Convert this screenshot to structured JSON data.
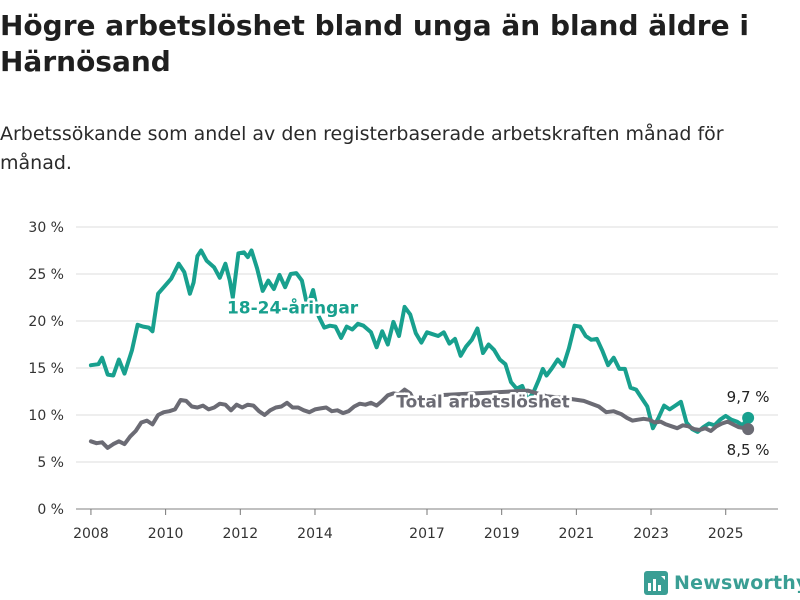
{
  "title": "Högre arbetslöshet bland unga än bland äldre i Härnösand",
  "subtitle": "Arbetssökande som andel av den registerbaserade arbetskraften månad för månad.",
  "brand": {
    "name": "Newsworthy",
    "icon": "bar-chart-logo-icon",
    "color": "#3a9e94"
  },
  "chart_data": {
    "type": "line",
    "title": "Högre arbetslöshet bland unga än bland äldre i Härnösand",
    "subtitle": "Arbetssökande som andel av den registerbaserade arbetskraften månad för månad.",
    "xlabel": "",
    "ylabel": "",
    "ylim": [
      0,
      30
    ],
    "xlim": [
      2007.6,
      2026.4
    ],
    "grid": "horizontal",
    "legend": "inline labels",
    "y_ticks": [
      0,
      5,
      10,
      15,
      20,
      25,
      30
    ],
    "y_tick_labels": [
      "0 %",
      "5 %",
      "10 %",
      "15 %",
      "20 %",
      "25 %",
      "30 %"
    ],
    "x_ticks": [
      2008,
      2010,
      2012,
      2014,
      2017,
      2019,
      2021,
      2023,
      2025
    ],
    "x_tick_labels": [
      "2008",
      "2010",
      "2012",
      "2014",
      "2017",
      "2019",
      "2021",
      "2023",
      "2025"
    ],
    "series": [
      {
        "name": "18-24-åringar",
        "color": "#18a08e",
        "end_label": "9,7 %",
        "points": [
          [
            2008.0,
            15.3
          ],
          [
            2008.2,
            15.4
          ],
          [
            2008.3,
            16.1
          ],
          [
            2008.45,
            14.3
          ],
          [
            2008.6,
            14.2
          ],
          [
            2008.75,
            15.9
          ],
          [
            2008.9,
            14.4
          ],
          [
            2009.1,
            16.9
          ],
          [
            2009.25,
            19.6
          ],
          [
            2009.4,
            19.4
          ],
          [
            2009.55,
            19.3
          ],
          [
            2009.65,
            18.9
          ],
          [
            2009.8,
            22.9
          ],
          [
            2009.95,
            23.6
          ],
          [
            2010.15,
            24.5
          ],
          [
            2010.35,
            26.1
          ],
          [
            2010.5,
            25.2
          ],
          [
            2010.65,
            22.9
          ],
          [
            2010.75,
            24.1
          ],
          [
            2010.85,
            26.9
          ],
          [
            2010.95,
            27.5
          ],
          [
            2011.1,
            26.4
          ],
          [
            2011.3,
            25.7
          ],
          [
            2011.45,
            24.6
          ],
          [
            2011.6,
            26.1
          ],
          [
            2011.72,
            24.3
          ],
          [
            2011.8,
            22.5
          ],
          [
            2011.95,
            27.2
          ],
          [
            2012.1,
            27.3
          ],
          [
            2012.2,
            26.8
          ],
          [
            2012.3,
            27.5
          ],
          [
            2012.45,
            25.6
          ],
          [
            2012.6,
            23.2
          ],
          [
            2012.75,
            24.3
          ],
          [
            2012.9,
            23.4
          ],
          [
            2013.05,
            24.9
          ],
          [
            2013.2,
            23.6
          ],
          [
            2013.35,
            25.0
          ],
          [
            2013.5,
            25.1
          ],
          [
            2013.65,
            24.3
          ],
          [
            2013.8,
            21.5
          ],
          [
            2013.95,
            23.3
          ],
          [
            2014.1,
            20.5
          ],
          [
            2014.25,
            19.3
          ],
          [
            2014.4,
            19.5
          ],
          [
            2014.55,
            19.4
          ],
          [
            2014.7,
            18.2
          ],
          [
            2014.85,
            19.4
          ],
          [
            2015.0,
            19.1
          ],
          [
            2015.15,
            19.7
          ],
          [
            2015.3,
            19.5
          ],
          [
            2015.5,
            18.8
          ],
          [
            2015.65,
            17.2
          ],
          [
            2015.8,
            18.9
          ],
          [
            2015.95,
            17.5
          ],
          [
            2016.1,
            19.9
          ],
          [
            2016.25,
            18.4
          ],
          [
            2016.4,
            21.5
          ],
          [
            2016.55,
            20.7
          ],
          [
            2016.7,
            18.7
          ],
          [
            2016.85,
            17.7
          ],
          [
            2017.0,
            18.8
          ],
          [
            2017.15,
            18.6
          ],
          [
            2017.3,
            18.4
          ],
          [
            2017.45,
            18.8
          ],
          [
            2017.6,
            17.6
          ],
          [
            2017.75,
            18.1
          ],
          [
            2017.9,
            16.3
          ],
          [
            2018.05,
            17.3
          ],
          [
            2018.2,
            18.0
          ],
          [
            2018.35,
            19.2
          ],
          [
            2018.5,
            16.6
          ],
          [
            2018.65,
            17.5
          ],
          [
            2018.8,
            16.9
          ],
          [
            2018.95,
            15.9
          ],
          [
            2019.1,
            15.4
          ],
          [
            2019.25,
            13.5
          ],
          [
            2019.4,
            12.8
          ],
          [
            2019.55,
            13.1
          ],
          [
            2019.7,
            11.6
          ],
          [
            2019.85,
            12.4
          ],
          [
            2020.0,
            13.8
          ],
          [
            2020.1,
            14.9
          ],
          [
            2020.2,
            14.2
          ],
          [
            2020.35,
            15.0
          ],
          [
            2020.5,
            15.9
          ],
          [
            2020.65,
            15.2
          ],
          [
            2020.8,
            17.1
          ],
          [
            2020.95,
            19.5
          ],
          [
            2021.1,
            19.4
          ],
          [
            2021.25,
            18.4
          ],
          [
            2021.4,
            18.0
          ],
          [
            2021.55,
            18.1
          ],
          [
            2021.7,
            16.8
          ],
          [
            2021.85,
            15.3
          ],
          [
            2022.0,
            16.1
          ],
          [
            2022.15,
            14.9
          ],
          [
            2022.3,
            14.9
          ],
          [
            2022.45,
            12.9
          ],
          [
            2022.6,
            12.7
          ],
          [
            2022.75,
            11.8
          ],
          [
            2022.9,
            10.9
          ],
          [
            2023.05,
            8.6
          ],
          [
            2023.2,
            9.7
          ],
          [
            2023.35,
            11.0
          ],
          [
            2023.5,
            10.6
          ],
          [
            2023.65,
            11.0
          ],
          [
            2023.8,
            11.4
          ],
          [
            2023.95,
            9.2
          ],
          [
            2024.1,
            8.5
          ],
          [
            2024.25,
            8.2
          ],
          [
            2024.4,
            8.7
          ],
          [
            2024.55,
            9.1
          ],
          [
            2024.7,
            8.9
          ],
          [
            2024.85,
            9.5
          ],
          [
            2025.0,
            9.9
          ],
          [
            2025.15,
            9.5
          ],
          [
            2025.3,
            9.3
          ],
          [
            2025.45,
            8.9
          ],
          [
            2025.6,
            9.7
          ]
        ]
      },
      {
        "name": "Total arbetslöshet",
        "color": "#6b6b74",
        "end_label": "8,5 %",
        "points": [
          [
            2008.0,
            7.2
          ],
          [
            2008.15,
            7.0
          ],
          [
            2008.3,
            7.1
          ],
          [
            2008.45,
            6.5
          ],
          [
            2008.6,
            6.9
          ],
          [
            2008.75,
            7.2
          ],
          [
            2008.9,
            6.9
          ],
          [
            2009.05,
            7.7
          ],
          [
            2009.2,
            8.3
          ],
          [
            2009.35,
            9.2
          ],
          [
            2009.5,
            9.4
          ],
          [
            2009.65,
            9.0
          ],
          [
            2009.8,
            10.0
          ],
          [
            2009.95,
            10.3
          ],
          [
            2010.1,
            10.4
          ],
          [
            2010.25,
            10.6
          ],
          [
            2010.4,
            11.6
          ],
          [
            2010.55,
            11.5
          ],
          [
            2010.7,
            10.9
          ],
          [
            2010.85,
            10.8
          ],
          [
            2011.0,
            11.0
          ],
          [
            2011.15,
            10.6
          ],
          [
            2011.3,
            10.8
          ],
          [
            2011.45,
            11.2
          ],
          [
            2011.6,
            11.1
          ],
          [
            2011.75,
            10.5
          ],
          [
            2011.9,
            11.1
          ],
          [
            2012.05,
            10.8
          ],
          [
            2012.2,
            11.1
          ],
          [
            2012.35,
            11.0
          ],
          [
            2012.5,
            10.4
          ],
          [
            2012.65,
            10.0
          ],
          [
            2012.8,
            10.5
          ],
          [
            2012.95,
            10.8
          ],
          [
            2013.1,
            10.9
          ],
          [
            2013.25,
            11.3
          ],
          [
            2013.4,
            10.8
          ],
          [
            2013.55,
            10.8
          ],
          [
            2013.7,
            10.5
          ],
          [
            2013.85,
            10.3
          ],
          [
            2014.0,
            10.6
          ],
          [
            2014.15,
            10.7
          ],
          [
            2014.3,
            10.8
          ],
          [
            2014.45,
            10.4
          ],
          [
            2014.6,
            10.5
          ],
          [
            2014.75,
            10.2
          ],
          [
            2014.9,
            10.4
          ],
          [
            2015.05,
            10.9
          ],
          [
            2015.2,
            11.2
          ],
          [
            2015.35,
            11.1
          ],
          [
            2015.5,
            11.3
          ],
          [
            2015.65,
            11.0
          ],
          [
            2015.8,
            11.5
          ],
          [
            2015.95,
            12.1
          ],
          [
            2016.1,
            12.3
          ],
          [
            2016.25,
            12.2
          ],
          [
            2016.4,
            12.7
          ],
          [
            2016.55,
            12.3
          ],
          [
            2016.7,
            11.2
          ],
          [
            2016.85,
            11.0
          ],
          [
            2017.0,
            11.5
          ],
          [
            2017.15,
            11.9
          ],
          [
            2017.3,
            12.1
          ],
          [
            2019.7,
            12.6
          ],
          [
            2020.2,
            12.0
          ],
          [
            2020.7,
            11.8
          ],
          [
            2021.2,
            11.5
          ],
          [
            2021.6,
            10.9
          ],
          [
            2021.8,
            10.3
          ],
          [
            2022.0,
            10.4
          ],
          [
            2022.2,
            10.1
          ],
          [
            2022.35,
            9.7
          ],
          [
            2022.5,
            9.4
          ],
          [
            2022.65,
            9.5
          ],
          [
            2022.8,
            9.6
          ],
          [
            2022.95,
            9.5
          ],
          [
            2023.1,
            9.2
          ],
          [
            2023.25,
            9.3
          ],
          [
            2023.4,
            9.0
          ],
          [
            2023.55,
            8.8
          ],
          [
            2023.7,
            8.6
          ],
          [
            2023.85,
            8.9
          ],
          [
            2024.0,
            8.8
          ],
          [
            2024.15,
            8.5
          ],
          [
            2024.3,
            8.4
          ],
          [
            2024.45,
            8.6
          ],
          [
            2024.6,
            8.3
          ],
          [
            2024.75,
            8.8
          ],
          [
            2024.9,
            9.1
          ],
          [
            2025.05,
            9.3
          ],
          [
            2025.2,
            9.0
          ],
          [
            2025.35,
            8.7
          ],
          [
            2025.5,
            8.6
          ],
          [
            2025.6,
            8.5
          ]
        ]
      }
    ]
  }
}
